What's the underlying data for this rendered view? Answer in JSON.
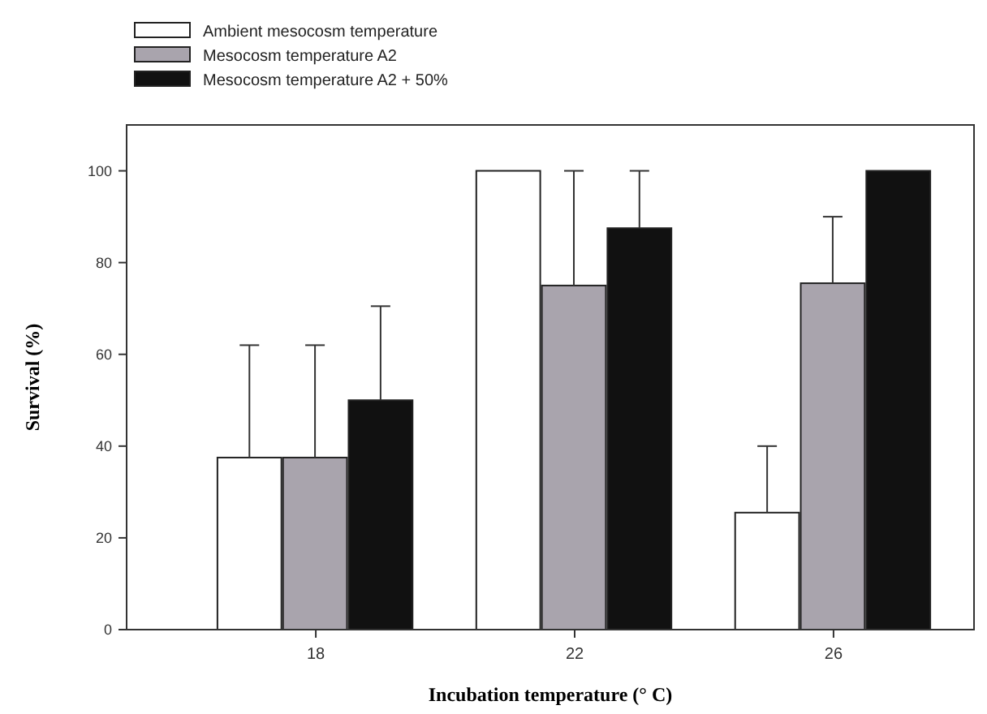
{
  "chart_data": {
    "type": "bar",
    "xlabel": "Incubation temperature (° C)",
    "ylabel": "Survival (%)",
    "categories": [
      "18",
      "22",
      "26"
    ],
    "series": [
      {
        "name": "Ambient mesocosm temperature",
        "color": "#ffffff",
        "values": [
          37.5,
          100,
          25.5
        ],
        "errors": [
          [
            37.5,
            62
          ],
          null,
          [
            25.5,
            40
          ]
        ]
      },
      {
        "name": "Mesocosm temperature A2",
        "color": "#a9a4ad",
        "values": [
          37.5,
          75,
          75.5
        ],
        "errors": [
          [
            37.5,
            62
          ],
          [
            75,
            100
          ],
          [
            75.5,
            90
          ]
        ]
      },
      {
        "name": "Mesocosm temperature A2 + 50%",
        "color": "#111111",
        "values": [
          50,
          87.5,
          100
        ],
        "errors": [
          [
            50,
            70.5
          ],
          [
            87.5,
            100
          ],
          null
        ]
      }
    ],
    "ylim": [
      0,
      110
    ],
    "yticks": [
      0,
      20,
      40,
      60,
      80,
      100
    ],
    "grid": false,
    "legend": "top left"
  }
}
